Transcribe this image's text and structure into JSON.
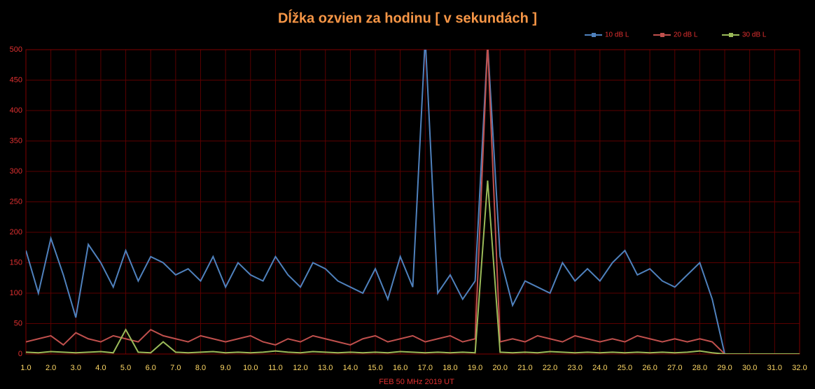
{
  "chart_data": {
    "type": "line",
    "title": "Dĺžka ozvien za hodinu [ v sekundách ]",
    "xlabel": "FEB 50 MHz  2019  UT",
    "x": [
      1,
      1.5,
      2,
      2.5,
      3,
      3.5,
      4,
      4.5,
      5,
      5.5,
      6,
      6.5,
      7,
      7.5,
      8,
      8.5,
      9,
      9.5,
      10,
      10.5,
      11,
      11.5,
      12,
      12.5,
      13,
      13.5,
      14,
      14.5,
      15,
      15.5,
      16,
      16.5,
      17,
      17.5,
      18,
      18.5,
      19,
      19.5,
      20,
      20.5,
      21,
      21.5,
      22,
      22.5,
      23,
      23.5,
      24,
      24.5,
      25,
      25.5,
      26,
      26.5,
      27,
      27.5,
      28,
      28.5,
      29,
      29.5,
      30,
      30.5,
      31,
      31.5,
      32
    ],
    "series": [
      {
        "name": "10 dB L",
        "color": "#4f81bd",
        "values": [
          170,
          100,
          190,
          130,
          60,
          180,
          150,
          110,
          170,
          120,
          160,
          150,
          130,
          140,
          120,
          160,
          110,
          150,
          130,
          120,
          160,
          130,
          110,
          150,
          140,
          120,
          110,
          100,
          140,
          90,
          160,
          110,
          520,
          100,
          130,
          90,
          120,
          510,
          160,
          80,
          120,
          110,
          100,
          150,
          120,
          140,
          120,
          150,
          170,
          130,
          140,
          120,
          110,
          130,
          150,
          90,
          0,
          0,
          0,
          0,
          0,
          0,
          0
        ]
      },
      {
        "name": "20 dB L",
        "color": "#c0504d",
        "values": [
          20,
          25,
          30,
          15,
          35,
          25,
          20,
          30,
          25,
          20,
          40,
          30,
          25,
          20,
          30,
          25,
          20,
          25,
          30,
          20,
          15,
          25,
          20,
          30,
          25,
          20,
          15,
          25,
          30,
          20,
          25,
          30,
          20,
          25,
          30,
          20,
          25,
          510,
          20,
          25,
          20,
          30,
          25,
          20,
          30,
          25,
          20,
          25,
          20,
          30,
          25,
          20,
          25,
          20,
          25,
          20,
          0,
          0,
          0,
          0,
          0,
          0,
          0
        ]
      },
      {
        "name": "30 dB L",
        "color": "#9bbb59",
        "values": [
          3,
          2,
          4,
          3,
          2,
          3,
          4,
          2,
          40,
          3,
          2,
          20,
          3,
          2,
          3,
          4,
          2,
          3,
          2,
          3,
          5,
          3,
          2,
          4,
          3,
          2,
          3,
          2,
          3,
          2,
          4,
          3,
          2,
          3,
          2,
          3,
          2,
          285,
          3,
          2,
          3,
          2,
          4,
          3,
          2,
          3,
          2,
          3,
          2,
          3,
          2,
          3,
          2,
          3,
          5,
          2,
          0,
          0,
          0,
          0,
          0,
          0,
          0
        ]
      }
    ],
    "xlim": [
      1,
      32
    ],
    "xticks": [
      {
        "value": 1,
        "label": "1.0"
      },
      {
        "value": 2,
        "label": "2.0"
      },
      {
        "value": 3,
        "label": "3.0"
      },
      {
        "value": 4,
        "label": "4.0"
      },
      {
        "value": 5,
        "label": "5.0"
      },
      {
        "value": 6,
        "label": "6.0"
      },
      {
        "value": 7,
        "label": "7.0"
      },
      {
        "value": 8,
        "label": "8.0"
      },
      {
        "value": 9,
        "label": "9.0"
      },
      {
        "value": 10,
        "label": "10.0"
      },
      {
        "value": 11,
        "label": "11.0"
      },
      {
        "value": 12,
        "label": "12.0"
      },
      {
        "value": 13,
        "label": "13.0"
      },
      {
        "value": 14,
        "label": "14.0"
      },
      {
        "value": 15,
        "label": "15.0"
      },
      {
        "value": 16,
        "label": "16.0"
      },
      {
        "value": 17,
        "label": "17.0"
      },
      {
        "value": 18,
        "label": "18.0"
      },
      {
        "value": 19,
        "label": "19.0"
      },
      {
        "value": 20,
        "label": "20.0"
      },
      {
        "value": 21,
        "label": "21.0"
      },
      {
        "value": 22,
        "label": "22.0"
      },
      {
        "value": 23,
        "label": "23.0"
      },
      {
        "value": 24,
        "label": "24.0"
      },
      {
        "value": 25,
        "label": "25.0"
      },
      {
        "value": 26,
        "label": "26.0"
      },
      {
        "value": 27,
        "label": "27.0"
      },
      {
        "value": 28,
        "label": "28.0"
      },
      {
        "value": 29,
        "label": "29.0"
      },
      {
        "value": 30,
        "label": "30.0"
      },
      {
        "value": 31,
        "label": "31.0"
      },
      {
        "value": 32,
        "label": "32.0"
      }
    ],
    "ylim": [
      0,
      500
    ],
    "yticks": [
      0,
      50,
      100,
      150,
      200,
      250,
      300,
      350,
      400,
      450,
      500
    ],
    "grid": true,
    "legend": "top-right"
  }
}
